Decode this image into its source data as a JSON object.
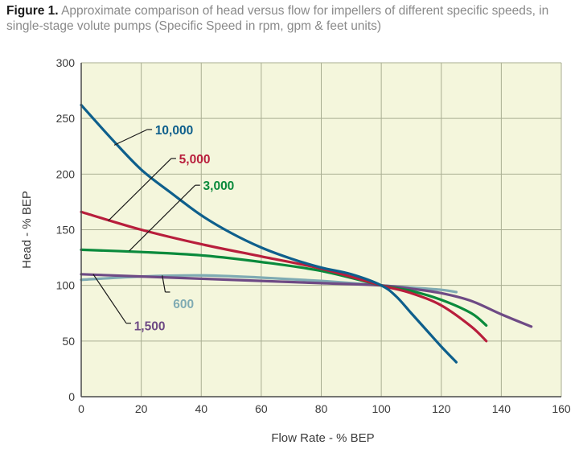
{
  "figure": {
    "label": "Figure 1.",
    "caption": "Approximate comparison of head versus flow for impellers of different specific speeds, in single-stage volute pumps (Specific Speed in rpm, gpm & feet units)"
  },
  "chart_data": {
    "type": "line",
    "title": "Figure 1. Approximate comparison of head versus flow for impellers of different specific speeds, in single-stage volute pumps (Specific Speed in rpm, gpm & feet units)",
    "xlabel": "Flow Rate - % BEP",
    "ylabel": "Head - % BEP",
    "xlim": [
      0,
      160
    ],
    "ylim": [
      0,
      300
    ],
    "xticks": [
      0,
      20,
      40,
      60,
      80,
      100,
      120,
      140,
      160
    ],
    "yticks": [
      0,
      50,
      100,
      150,
      200,
      250,
      300
    ],
    "grid": true,
    "background": "#f4f6dc",
    "grid_color": "#a9ae92",
    "series": [
      {
        "name": "10,000",
        "color": "#0e5f8c",
        "x": [
          0,
          10,
          20,
          30,
          40,
          50,
          60,
          70,
          80,
          90,
          100,
          105,
          110,
          115,
          120,
          125
        ],
        "y": [
          262,
          232,
          204,
          183,
          163,
          147,
          134,
          124,
          116,
          110,
          100,
          90,
          75,
          60,
          45,
          31
        ]
      },
      {
        "name": "5,000",
        "color": "#b81e3c",
        "x": [
          0,
          20,
          40,
          60,
          80,
          100,
          110,
          120,
          130,
          135
        ],
        "y": [
          166,
          150,
          137,
          126,
          115,
          100,
          93,
          82,
          63,
          50
        ]
      },
      {
        "name": "3,000",
        "color": "#0a8a3c",
        "x": [
          0,
          20,
          40,
          60,
          80,
          100,
          110,
          120,
          130,
          135
        ],
        "y": [
          132,
          130,
          127,
          121,
          113,
          100,
          95,
          87,
          75,
          64
        ]
      },
      {
        "name": "1,500",
        "color": "#6e4a85",
        "x": [
          0,
          20,
          40,
          60,
          80,
          100,
          110,
          120,
          130,
          140,
          150
        ],
        "y": [
          110,
          108,
          106,
          104,
          102,
          100,
          97,
          93,
          86,
          74,
          63
        ]
      },
      {
        "name": "600",
        "color": "#7fabb3",
        "x": [
          0,
          20,
          40,
          60,
          80,
          100,
          110,
          120,
          125
        ],
        "y": [
          105,
          108,
          109,
          107,
          104,
          100,
          98,
          96,
          94
        ]
      }
    ],
    "labels": [
      {
        "series": "10,000",
        "text": "10,000",
        "at": [
          0,
          0
        ],
        "leader_from": [
          11,
          226
        ],
        "leader_to": [
          22,
          240
        ],
        "text_at": [
          23,
          240
        ]
      },
      {
        "series": "5,000",
        "text": "5,000",
        "at": [
          0,
          0
        ],
        "leader_from": [
          9,
          158
        ],
        "leader_to": [
          30,
          214
        ],
        "text_at": [
          31,
          214
        ]
      },
      {
        "series": "3,000",
        "text": "3,000",
        "at": [
          0,
          0
        ],
        "leader_from": [
          16,
          131
        ],
        "leader_to": [
          38,
          190
        ],
        "text_at": [
          39,
          190
        ]
      },
      {
        "series": "600",
        "text": "600",
        "at": [
          0,
          0
        ],
        "leader_from": [
          27,
          109
        ],
        "leader_to": [
          28,
          94
        ],
        "text_at": [
          29,
          84
        ]
      },
      {
        "series": "1,500",
        "text": "1,500",
        "at": [
          0,
          0
        ],
        "leader_from": [
          4,
          110
        ],
        "leader_to": [
          15,
          66
        ],
        "text_at": [
          16,
          64
        ]
      }
    ]
  }
}
